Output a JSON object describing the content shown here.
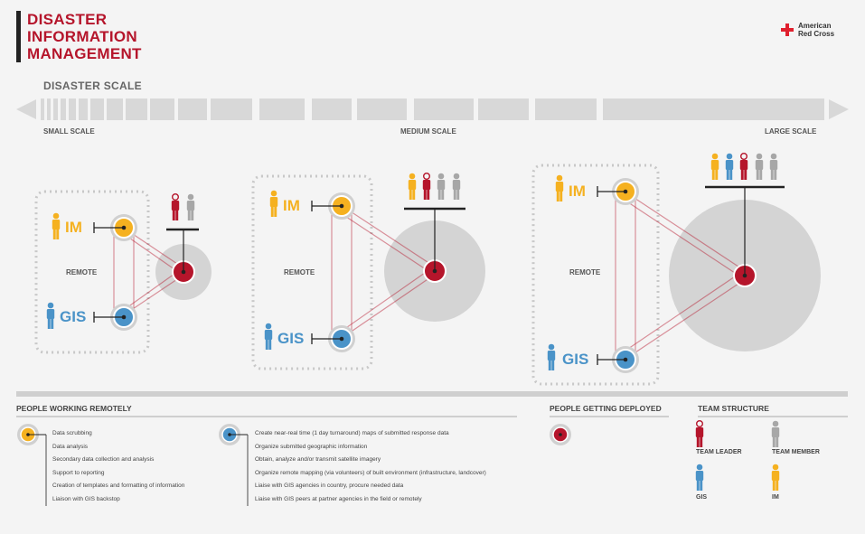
{
  "header": {
    "title_lines": [
      "DISASTER",
      "INFORMATION",
      "MANAGEMENT"
    ],
    "org_line1": "American",
    "org_line2": "Red Cross"
  },
  "scale": {
    "title": "DISASTER SCALE",
    "small": "SMALL SCALE",
    "medium": "MEDIUM SCALE",
    "large": "LARGE SCALE"
  },
  "diagram": {
    "im_label": "IM",
    "gis_label": "GIS",
    "remote_label": "REMOTE"
  },
  "colors": {
    "red": "#b5152b",
    "yellow": "#f5b120",
    "blue": "#4a93c8",
    "gray": "#a7a7a7"
  },
  "sections": {
    "remote_title": "PEOPLE WORKING REMOTELY",
    "deployed_title": "PEOPLE GETTING DEPLOYED",
    "team_title": "TEAM STRUCTURE"
  },
  "im_tasks": [
    "Data scrubbing",
    "Data analysis",
    "Secondary data collection and analysis",
    "Support to reporting",
    "Creation of templates and formatting of information",
    "Liaison with GIS backstop"
  ],
  "gis_tasks": [
    "Create near-real time (1 day turnaround) maps of submitted response data",
    "Organize submitted geographic information",
    "Obtain, analyze and/or transmit satellite imagery",
    "Organize remote mapping (via volunteers) of built environment (infrastructure, landcover)",
    "Liaise with GIS agencies in country, procure needed data",
    "Liaise with GIS peers at partner agencies in the field or remotely"
  ],
  "team": {
    "leader": "TEAM LEADER",
    "member": "TEAM MEMBER",
    "gis": "GIS",
    "im": "IM"
  }
}
